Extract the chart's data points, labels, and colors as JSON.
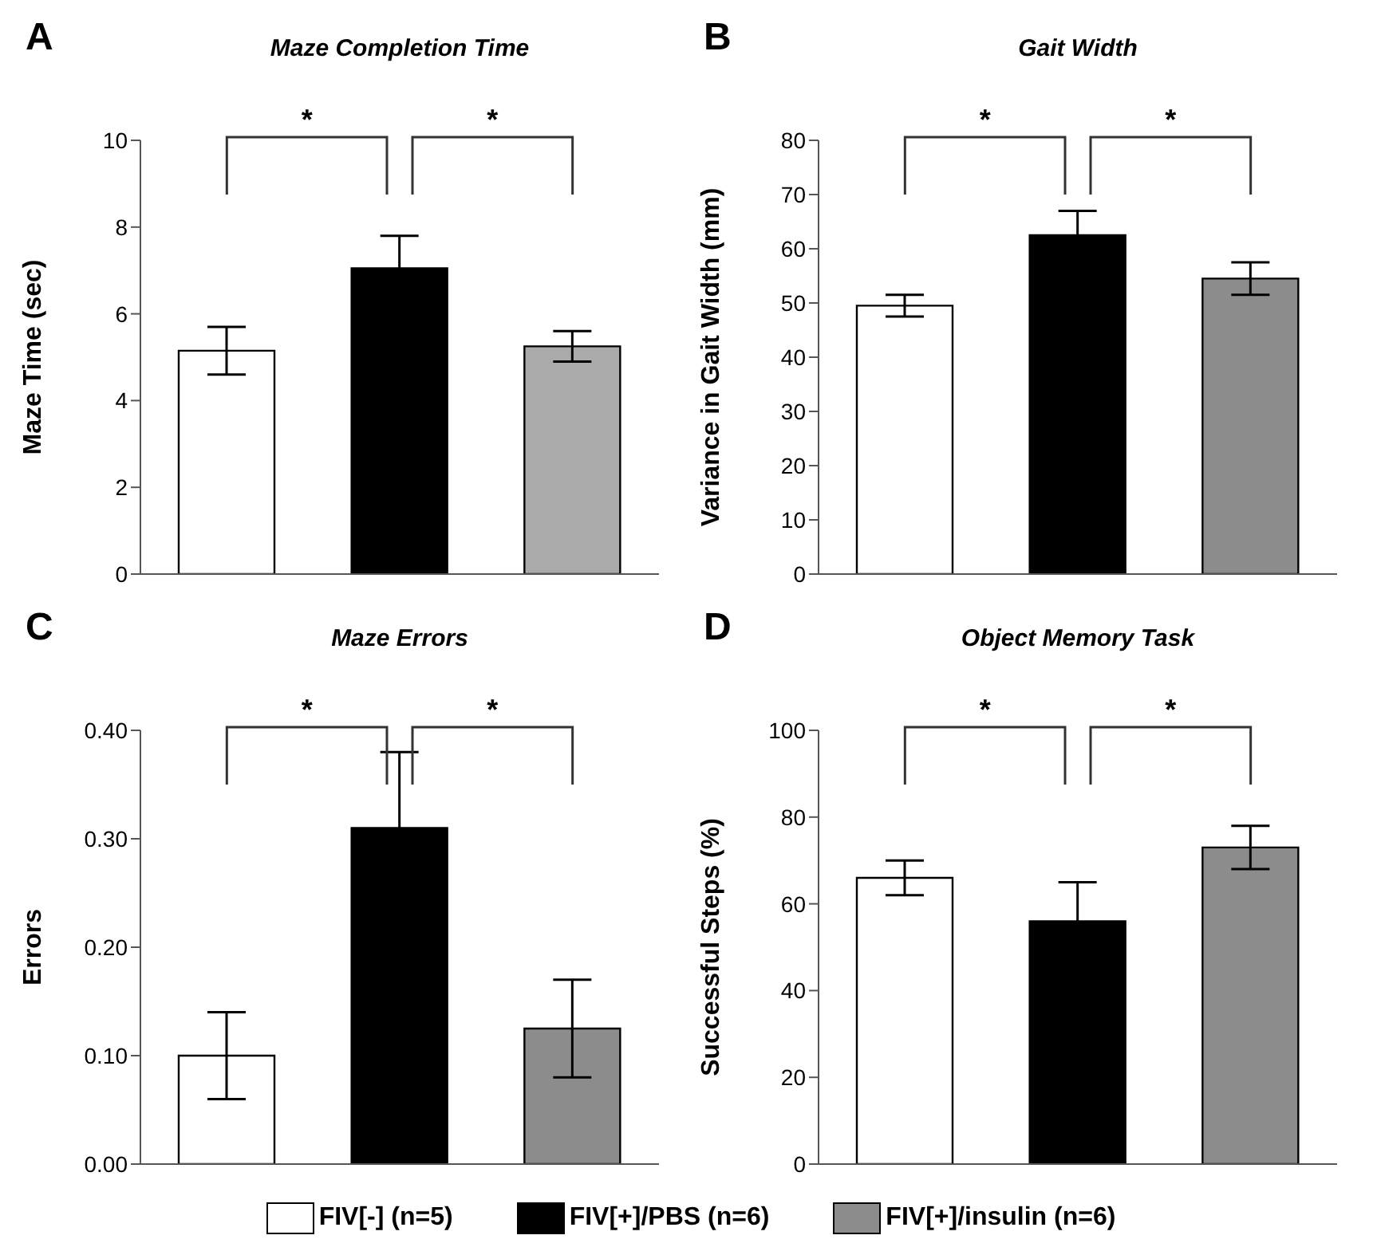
{
  "chart_data": [
    {
      "type": "bar",
      "title": "Maze Completion Time",
      "ylabel": "Maze Time (sec)",
      "categories": [
        null,
        null,
        null
      ],
      "ylim": [
        0,
        10
      ],
      "yticks": [
        0,
        2,
        4,
        6,
        8,
        10
      ],
      "annotations": [
        "A",
        "*",
        "*"
      ],
      "series": [
        {
          "color": "#ffffff",
          "values": [
            5.15,
            null,
            null
          ],
          "errors": [
            0.55,
            null,
            null
          ]
        },
        {
          "color": "#000000",
          "values": [
            null,
            7.05,
            null
          ],
          "errors": [
            null,
            0.75,
            null
          ]
        },
        {
          "color": "#aaaaaa",
          "values": [
            null,
            null,
            5.25
          ],
          "errors": [
            null,
            null,
            0.35
          ]
        }
      ]
    },
    {
      "type": "bar",
      "title": "Gait Width",
      "ylabel": "Variance in Gait Width (mm)",
      "categories": [
        null,
        null,
        null
      ],
      "ylim": [
        0,
        80
      ],
      "yticks": [
        0,
        10,
        20,
        30,
        40,
        50,
        60,
        70,
        80
      ],
      "annotations": [
        "B",
        "*",
        "*"
      ],
      "series": [
        {
          "color": "#ffffff",
          "values": [
            49.5,
            null,
            null
          ],
          "errors": [
            2,
            null,
            null
          ]
        },
        {
          "color": "#000000",
          "values": [
            null,
            62.5,
            null
          ],
          "errors": [
            null,
            4.5,
            null
          ]
        },
        {
          "color": "#8c8c8c",
          "values": [
            null,
            null,
            54.5
          ],
          "errors": [
            null,
            null,
            3
          ]
        }
      ]
    },
    {
      "type": "bar",
      "title": "Maze Errors",
      "ylabel": "Errors",
      "categories": [
        null,
        null,
        null
      ],
      "ylim": [
        0,
        0.4
      ],
      "yticks": [
        {
          "value": 0,
          "label": "0.00"
        },
        {
          "value": 0.1,
          "label": "0.10"
        },
        {
          "value": 0.2,
          "label": "0.20"
        },
        {
          "value": 0.3,
          "label": "0.30"
        },
        {
          "value": 0.4,
          "label": "0.40"
        }
      ],
      "annotations": [
        "C",
        "*",
        "*"
      ],
      "series": [
        {
          "color": "#ffffff",
          "values": [
            0.1,
            null,
            null
          ],
          "errors": [
            0.04,
            null,
            null
          ]
        },
        {
          "color": "#000000",
          "values": [
            null,
            0.31,
            null
          ],
          "errors": [
            null,
            0.07,
            null
          ]
        },
        {
          "color": "#8c8c8c",
          "values": [
            null,
            null,
            0.125
          ],
          "errors": [
            null,
            null,
            0.045
          ]
        }
      ]
    },
    {
      "type": "bar",
      "title": "Object Memory Task",
      "ylabel": "Successful Steps (%)",
      "categories": [
        null,
        null,
        null
      ],
      "ylim": [
        0,
        100
      ],
      "yticks": [
        0,
        20,
        40,
        60,
        80,
        100
      ],
      "annotations": [
        "D",
        "*",
        "*"
      ],
      "legend": "bottom",
      "series": [
        {
          "name": "FIV[-] (n=5)",
          "color": "#ffffff",
          "values": [
            66,
            null,
            null
          ],
          "errors": [
            4,
            null,
            null
          ]
        },
        {
          "name": "FIV[+]/PBS (n=6)",
          "color": "#000000",
          "values": [
            null,
            56,
            null
          ],
          "errors": [
            null,
            9,
            null
          ]
        },
        {
          "name": "FIV[+]/insulin (n=6)",
          "color": "#8c8c8c",
          "values": [
            null,
            null,
            73
          ],
          "errors": [
            null,
            null,
            5
          ]
        }
      ]
    }
  ]
}
